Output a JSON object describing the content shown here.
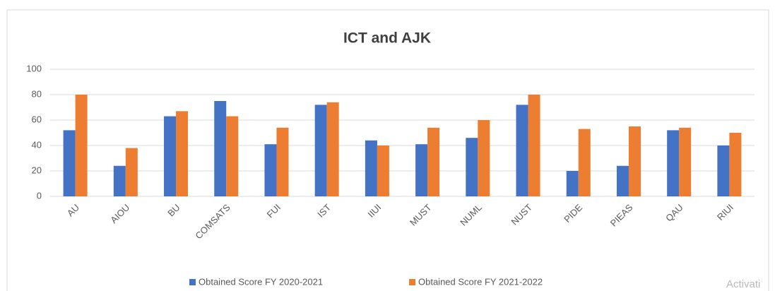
{
  "chart_data": {
    "type": "bar",
    "title": "ICT and AJK",
    "categories": [
      "AU",
      "AIOU",
      "BU",
      "COMSATS",
      "FUI",
      "IST",
      "IIUI",
      "MUST",
      "NUML",
      "NUST",
      "PIDE",
      "PIEAS",
      "QAU",
      "RIUI"
    ],
    "series": [
      {
        "name": "Obtained Score FY 2020-2021",
        "color": "#4472c4",
        "values": [
          52,
          24,
          63,
          75,
          41,
          72,
          44,
          41,
          46,
          72,
          20,
          24,
          52,
          40
        ]
      },
      {
        "name": "Obtained Score FY 2021-2022",
        "color": "#ed7d31",
        "values": [
          80,
          38,
          67,
          63,
          54,
          74,
          40,
          54,
          60,
          80,
          53,
          55,
          54,
          50
        ]
      }
    ],
    "ylim": [
      0,
      100
    ],
    "yticks": [
      0,
      20,
      40,
      60,
      80,
      100
    ],
    "grid": true,
    "legend": "bottom",
    "watermark": "Activati"
  }
}
